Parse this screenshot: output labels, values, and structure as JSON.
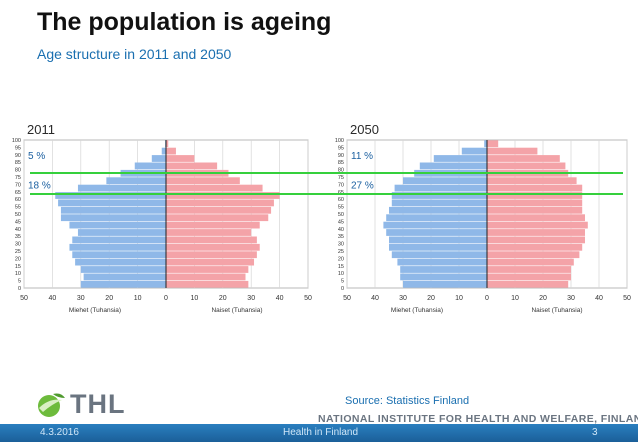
{
  "header": {
    "title": "The population is ageing",
    "subtitle": "Age structure in 2011 and 2050"
  },
  "chart_data": [
    {
      "type": "bar",
      "orientation": "horizontal-pyramid",
      "label": "2011",
      "age_ticks": [
        "100",
        "95",
        "90",
        "85",
        "80",
        "75",
        "70",
        "65",
        "60",
        "55",
        "50",
        "45",
        "40",
        "35",
        "30",
        "25",
        "20",
        "15",
        "10",
        "5",
        "0"
      ],
      "x_ticks": [
        "50",
        "40",
        "30",
        "20",
        "10",
        "0",
        "10",
        "20",
        "30",
        "40",
        "50"
      ],
      "xlim": [
        -50,
        50
      ],
      "left_axis_label": "Miehet (Tuhansia)",
      "right_axis_label": "Naiset (Tuhansia)",
      "series_colors": {
        "men": "#8fb8e8",
        "women": "#f4a3a8"
      },
      "age_groups_start": [
        0,
        5,
        10,
        15,
        20,
        25,
        30,
        35,
        40,
        45,
        50,
        55,
        60,
        65,
        70,
        75,
        80,
        85,
        90,
        95
      ],
      "men": [
        30,
        29,
        30,
        32,
        33,
        34,
        33,
        31,
        34,
        37,
        37,
        38,
        39,
        31,
        21,
        16,
        11,
        5,
        1.5,
        0.3
      ],
      "women": [
        29,
        28,
        29,
        31,
        32,
        33,
        32,
        30,
        33,
        36,
        37,
        38,
        40,
        34,
        26,
        22,
        18,
        10,
        3.5,
        0.8
      ],
      "annotations": [
        {
          "text": "5 %",
          "age": 90
        },
        {
          "text": "18 %",
          "age": 70
        }
      ]
    },
    {
      "type": "bar",
      "orientation": "horizontal-pyramid",
      "label": "2050",
      "age_ticks": [
        "100",
        "95",
        "90",
        "85",
        "80",
        "75",
        "70",
        "65",
        "60",
        "55",
        "50",
        "45",
        "40",
        "35",
        "30",
        "25",
        "20",
        "15",
        "10",
        "5",
        "0"
      ],
      "x_ticks": [
        "50",
        "40",
        "30",
        "20",
        "10",
        "0",
        "10",
        "20",
        "30",
        "40",
        "50"
      ],
      "xlim": [
        -50,
        50
      ],
      "left_axis_label": "Miehet (Tuhansia)",
      "right_axis_label": "Naiset (Tuhansia)",
      "series_colors": {
        "men": "#8fb8e8",
        "women": "#f4a3a8"
      },
      "age_groups_start": [
        0,
        5,
        10,
        15,
        20,
        25,
        30,
        35,
        40,
        45,
        50,
        55,
        60,
        65,
        70,
        75,
        80,
        85,
        90,
        95
      ],
      "men": [
        30,
        31,
        31,
        32,
        34,
        35,
        35,
        36,
        37,
        36,
        35,
        34,
        34,
        33,
        30,
        26,
        24,
        19,
        9,
        1
      ],
      "women": [
        29,
        30,
        30,
        31,
        33,
        34,
        35,
        35,
        36,
        35,
        34,
        34,
        34,
        34,
        32,
        29,
        28,
        26,
        18,
        4
      ],
      "annotations": [
        {
          "text": "11 %",
          "age": 90
        },
        {
          "text": "27 %",
          "age": 70
        }
      ]
    }
  ],
  "source": "Source: Statistics Finland",
  "logo": {
    "text": "THL",
    "icon": "globe-leaf-icon"
  },
  "institute": "NATIONAL INSTITUTE FOR HEALTH AND WELFARE, FINLAND",
  "footer": {
    "date": "4.3.2016",
    "center": "Health in Finland",
    "page": "3"
  }
}
